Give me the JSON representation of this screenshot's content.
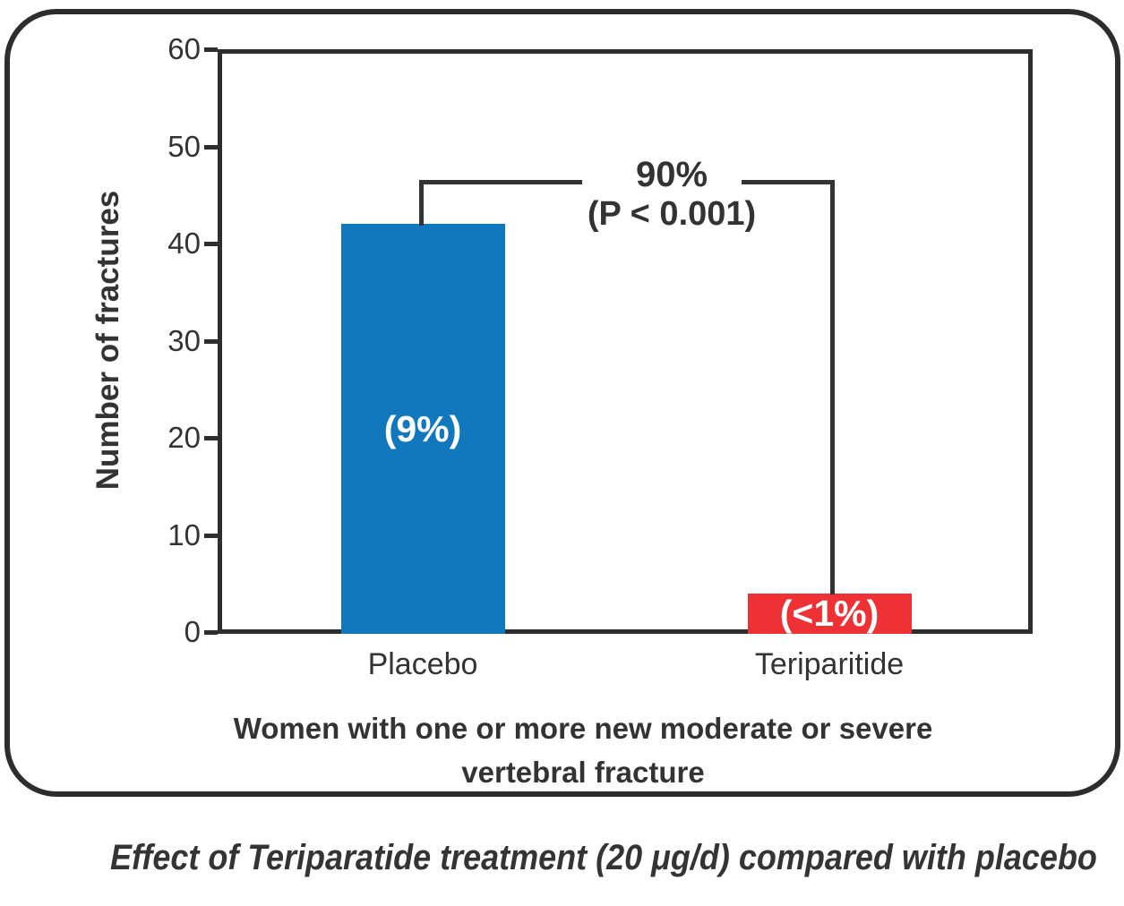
{
  "chart_data": {
    "type": "bar",
    "categories": [
      "Placebo",
      "Teriparitide"
    ],
    "values": [
      42,
      4
    ],
    "bar_value_labels": [
      "(9%)",
      "(<1%)"
    ],
    "bar_colors": [
      "#1178be",
      "#ee3134"
    ],
    "ylabel": "Number of fractures",
    "xlabel_line1": "Women with one or more new moderate or severe",
    "xlabel_line2": "vertebral fracture",
    "ylim": [
      0,
      60
    ],
    "yticks": [
      0,
      10,
      20,
      30,
      40,
      50,
      60
    ],
    "grid": false,
    "legend": false,
    "annotation": {
      "label": "90%",
      "sub_label": "(P < 0.001)"
    }
  },
  "caption": "Effect of Teriparatide treatment (20 μg/d) compared with placebo",
  "colors": {
    "axis": "#2e2e2e",
    "text": "#333333",
    "placebo_bar": "#1178be",
    "teriparitide_bar": "#ee3134",
    "bar_label_text": "#ffffff"
  }
}
